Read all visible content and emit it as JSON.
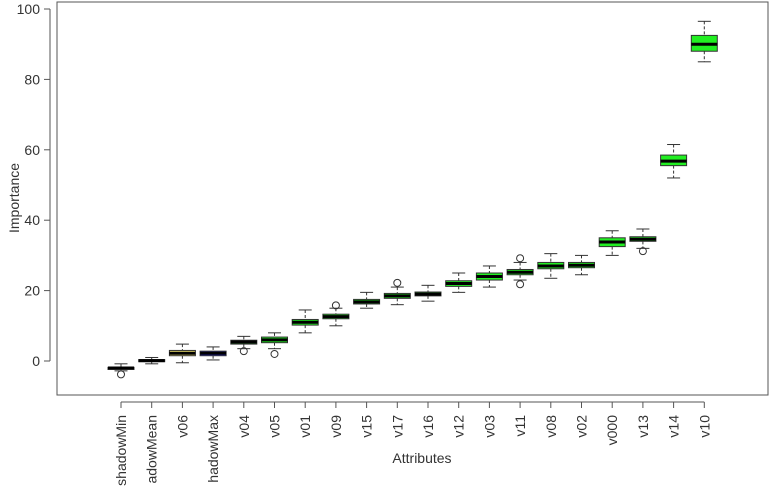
{
  "chart_data": {
    "type": "box",
    "title": "",
    "xlabel": "Attributes",
    "ylabel": "Importance",
    "ylim": [
      -8,
      100
    ],
    "yticks": [
      0,
      20,
      40,
      60,
      80,
      100
    ],
    "grid": false,
    "legend": "none",
    "categories": [
      "shadowMin",
      "adowMean",
      "v06",
      "hadowMax",
      "v04",
      "v05",
      "v01",
      "v09",
      "v15",
      "v17",
      "v16",
      "v12",
      "v03",
      "v11",
      "v08",
      "v02",
      "v000",
      "v13",
      "v14",
      "v10"
    ],
    "colors": {
      "shadow": "#ffffff",
      "tentative": "#f0e26e",
      "shadowMax": "#2828d8",
      "confirmed": "#22ee22"
    },
    "boxes": [
      {
        "label": "shadowMin",
        "min": -2.8,
        "q1": -2.4,
        "median": -2.0,
        "q3": -1.8,
        "max": -0.8,
        "outliers": [
          -3.8
        ],
        "color_key": "shadow"
      },
      {
        "label": "adowMean",
        "min": -0.8,
        "q1": -0.2,
        "median": 0.1,
        "q3": 0.4,
        "max": 1.0,
        "outliers": [],
        "color_key": "shadow"
      },
      {
        "label": "v06",
        "min": -0.5,
        "q1": 1.5,
        "median": 2.2,
        "q3": 3.0,
        "max": 4.8,
        "outliers": [],
        "color_key": "tentative"
      },
      {
        "label": "hadowMax",
        "min": 0.3,
        "q1": 1.5,
        "median": 2.2,
        "q3": 2.8,
        "max": 4.0,
        "outliers": [],
        "color_key": "shadowMax"
      },
      {
        "label": "v04",
        "min": 3.5,
        "q1": 4.8,
        "median": 5.4,
        "q3": 5.9,
        "max": 7.0,
        "outliers": [
          2.8
        ],
        "color_key": "confirmed"
      },
      {
        "label": "v05",
        "min": 3.5,
        "q1": 5.2,
        "median": 6.0,
        "q3": 6.8,
        "max": 8.0,
        "outliers": [
          2.0
        ],
        "color_key": "confirmed"
      },
      {
        "label": "v01",
        "min": 8.0,
        "q1": 10.2,
        "median": 11.0,
        "q3": 11.8,
        "max": 14.5,
        "outliers": [],
        "color_key": "confirmed"
      },
      {
        "label": "v09",
        "min": 10.0,
        "q1": 12.0,
        "median": 12.6,
        "q3": 13.3,
        "max": 15.0,
        "outliers": [
          15.8
        ],
        "color_key": "confirmed"
      },
      {
        "label": "v15",
        "min": 15.0,
        "q1": 16.2,
        "median": 16.8,
        "q3": 17.5,
        "max": 19.5,
        "outliers": [],
        "color_key": "confirmed"
      },
      {
        "label": "v17",
        "min": 16.0,
        "q1": 17.8,
        "median": 18.5,
        "q3": 19.2,
        "max": 21.0,
        "outliers": [
          22.2
        ],
        "color_key": "confirmed"
      },
      {
        "label": "v16",
        "min": 17.0,
        "q1": 18.5,
        "median": 19.0,
        "q3": 19.6,
        "max": 21.5,
        "outliers": [],
        "color_key": "confirmed"
      },
      {
        "label": "v12",
        "min": 19.5,
        "q1": 21.2,
        "median": 22.0,
        "q3": 22.8,
        "max": 25.0,
        "outliers": [],
        "color_key": "confirmed"
      },
      {
        "label": "v03",
        "min": 21.0,
        "q1": 23.0,
        "median": 24.0,
        "q3": 25.0,
        "max": 27.0,
        "outliers": [],
        "color_key": "confirmed"
      },
      {
        "label": "v11",
        "min": 23.0,
        "q1": 24.5,
        "median": 25.2,
        "q3": 26.0,
        "max": 28.0,
        "outliers": [
          29.2,
          21.8
        ],
        "color_key": "confirmed"
      },
      {
        "label": "v08",
        "min": 23.5,
        "q1": 26.2,
        "median": 27.0,
        "q3": 28.0,
        "max": 30.5,
        "outliers": [],
        "color_key": "confirmed"
      },
      {
        "label": "v02",
        "min": 24.5,
        "q1": 26.5,
        "median": 27.2,
        "q3": 28.0,
        "max": 30.0,
        "outliers": [],
        "color_key": "confirmed"
      },
      {
        "label": "v000",
        "min": 30.0,
        "q1": 32.5,
        "median": 33.8,
        "q3": 35.0,
        "max": 37.0,
        "outliers": [],
        "color_key": "confirmed"
      },
      {
        "label": "v13",
        "min": 32.0,
        "q1": 34.0,
        "median": 34.6,
        "q3": 35.3,
        "max": 37.5,
        "outliers": [
          31.2
        ],
        "color_key": "confirmed"
      },
      {
        "label": "v14",
        "min": 52.0,
        "q1": 55.5,
        "median": 56.8,
        "q3": 58.5,
        "max": 61.5,
        "outliers": [],
        "color_key": "confirmed"
      },
      {
        "label": "v10",
        "min": 85.0,
        "q1": 88.0,
        "median": 90.0,
        "q3": 92.5,
        "max": 96.5,
        "outliers": [],
        "color_key": "confirmed"
      }
    ]
  }
}
